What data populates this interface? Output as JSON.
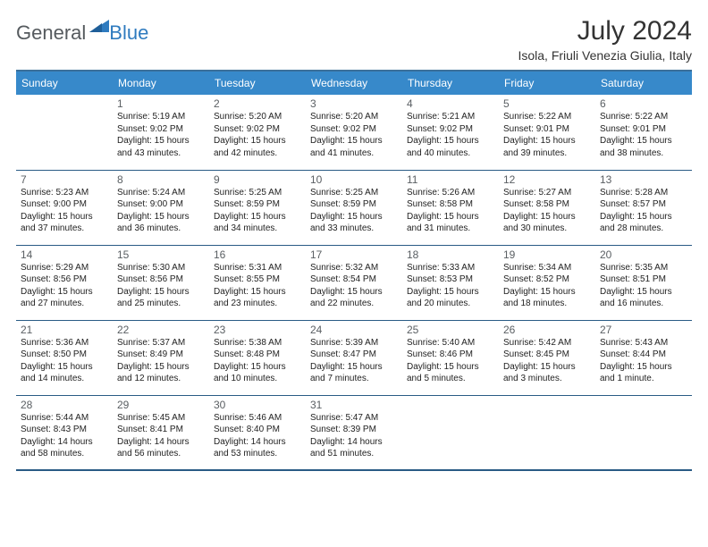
{
  "brand": {
    "general": "General",
    "blue": "Blue"
  },
  "title": "July 2024",
  "location": "Isola, Friuli Venezia Giulia, Italy",
  "colors": {
    "header_bg": "#3789ca",
    "header_border": "#3b6f9a",
    "cell_border": "#2a5b85",
    "text": "#222222",
    "daynum": "#5a5f63",
    "logo_gray": "#555a5e",
    "logo_blue": "#2f7bbf"
  },
  "weekdays": [
    "Sunday",
    "Monday",
    "Tuesday",
    "Wednesday",
    "Thursday",
    "Friday",
    "Saturday"
  ],
  "weeks": [
    [
      {
        "day": "",
        "lines": []
      },
      {
        "day": "1",
        "lines": [
          "Sunrise: 5:19 AM",
          "Sunset: 9:02 PM",
          "Daylight: 15 hours and 43 minutes."
        ]
      },
      {
        "day": "2",
        "lines": [
          "Sunrise: 5:20 AM",
          "Sunset: 9:02 PM",
          "Daylight: 15 hours and 42 minutes."
        ]
      },
      {
        "day": "3",
        "lines": [
          "Sunrise: 5:20 AM",
          "Sunset: 9:02 PM",
          "Daylight: 15 hours and 41 minutes."
        ]
      },
      {
        "day": "4",
        "lines": [
          "Sunrise: 5:21 AM",
          "Sunset: 9:02 PM",
          "Daylight: 15 hours and 40 minutes."
        ]
      },
      {
        "day": "5",
        "lines": [
          "Sunrise: 5:22 AM",
          "Sunset: 9:01 PM",
          "Daylight: 15 hours and 39 minutes."
        ]
      },
      {
        "day": "6",
        "lines": [
          "Sunrise: 5:22 AM",
          "Sunset: 9:01 PM",
          "Daylight: 15 hours and 38 minutes."
        ]
      }
    ],
    [
      {
        "day": "7",
        "lines": [
          "Sunrise: 5:23 AM",
          "Sunset: 9:00 PM",
          "Daylight: 15 hours and 37 minutes."
        ]
      },
      {
        "day": "8",
        "lines": [
          "Sunrise: 5:24 AM",
          "Sunset: 9:00 PM",
          "Daylight: 15 hours and 36 minutes."
        ]
      },
      {
        "day": "9",
        "lines": [
          "Sunrise: 5:25 AM",
          "Sunset: 8:59 PM",
          "Daylight: 15 hours and 34 minutes."
        ]
      },
      {
        "day": "10",
        "lines": [
          "Sunrise: 5:25 AM",
          "Sunset: 8:59 PM",
          "Daylight: 15 hours and 33 minutes."
        ]
      },
      {
        "day": "11",
        "lines": [
          "Sunrise: 5:26 AM",
          "Sunset: 8:58 PM",
          "Daylight: 15 hours and 31 minutes."
        ]
      },
      {
        "day": "12",
        "lines": [
          "Sunrise: 5:27 AM",
          "Sunset: 8:58 PM",
          "Daylight: 15 hours and 30 minutes."
        ]
      },
      {
        "day": "13",
        "lines": [
          "Sunrise: 5:28 AM",
          "Sunset: 8:57 PM",
          "Daylight: 15 hours and 28 minutes."
        ]
      }
    ],
    [
      {
        "day": "14",
        "lines": [
          "Sunrise: 5:29 AM",
          "Sunset: 8:56 PM",
          "Daylight: 15 hours and 27 minutes."
        ]
      },
      {
        "day": "15",
        "lines": [
          "Sunrise: 5:30 AM",
          "Sunset: 8:56 PM",
          "Daylight: 15 hours and 25 minutes."
        ]
      },
      {
        "day": "16",
        "lines": [
          "Sunrise: 5:31 AM",
          "Sunset: 8:55 PM",
          "Daylight: 15 hours and 23 minutes."
        ]
      },
      {
        "day": "17",
        "lines": [
          "Sunrise: 5:32 AM",
          "Sunset: 8:54 PM",
          "Daylight: 15 hours and 22 minutes."
        ]
      },
      {
        "day": "18",
        "lines": [
          "Sunrise: 5:33 AM",
          "Sunset: 8:53 PM",
          "Daylight: 15 hours and 20 minutes."
        ]
      },
      {
        "day": "19",
        "lines": [
          "Sunrise: 5:34 AM",
          "Sunset: 8:52 PM",
          "Daylight: 15 hours and 18 minutes."
        ]
      },
      {
        "day": "20",
        "lines": [
          "Sunrise: 5:35 AM",
          "Sunset: 8:51 PM",
          "Daylight: 15 hours and 16 minutes."
        ]
      }
    ],
    [
      {
        "day": "21",
        "lines": [
          "Sunrise: 5:36 AM",
          "Sunset: 8:50 PM",
          "Daylight: 15 hours and 14 minutes."
        ]
      },
      {
        "day": "22",
        "lines": [
          "Sunrise: 5:37 AM",
          "Sunset: 8:49 PM",
          "Daylight: 15 hours and 12 minutes."
        ]
      },
      {
        "day": "23",
        "lines": [
          "Sunrise: 5:38 AM",
          "Sunset: 8:48 PM",
          "Daylight: 15 hours and 10 minutes."
        ]
      },
      {
        "day": "24",
        "lines": [
          "Sunrise: 5:39 AM",
          "Sunset: 8:47 PM",
          "Daylight: 15 hours and 7 minutes."
        ]
      },
      {
        "day": "25",
        "lines": [
          "Sunrise: 5:40 AM",
          "Sunset: 8:46 PM",
          "Daylight: 15 hours and 5 minutes."
        ]
      },
      {
        "day": "26",
        "lines": [
          "Sunrise: 5:42 AM",
          "Sunset: 8:45 PM",
          "Daylight: 15 hours and 3 minutes."
        ]
      },
      {
        "day": "27",
        "lines": [
          "Sunrise: 5:43 AM",
          "Sunset: 8:44 PM",
          "Daylight: 15 hours and 1 minute."
        ]
      }
    ],
    [
      {
        "day": "28",
        "lines": [
          "Sunrise: 5:44 AM",
          "Sunset: 8:43 PM",
          "Daylight: 14 hours and 58 minutes."
        ]
      },
      {
        "day": "29",
        "lines": [
          "Sunrise: 5:45 AM",
          "Sunset: 8:41 PM",
          "Daylight: 14 hours and 56 minutes."
        ]
      },
      {
        "day": "30",
        "lines": [
          "Sunrise: 5:46 AM",
          "Sunset: 8:40 PM",
          "Daylight: 14 hours and 53 minutes."
        ]
      },
      {
        "day": "31",
        "lines": [
          "Sunrise: 5:47 AM",
          "Sunset: 8:39 PM",
          "Daylight: 14 hours and 51 minutes."
        ]
      },
      {
        "day": "",
        "lines": []
      },
      {
        "day": "",
        "lines": []
      },
      {
        "day": "",
        "lines": []
      }
    ]
  ]
}
